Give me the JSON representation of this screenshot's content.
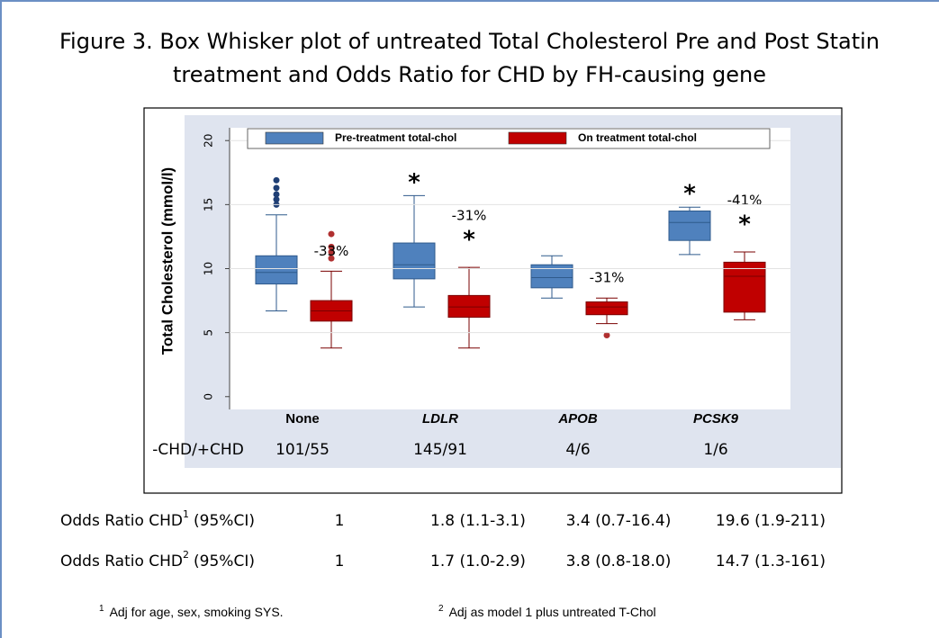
{
  "title": "Figure 3. Box Whisker plot of untreated Total Cholesterol Pre and Post Statin treatment and Odds Ratio for CHD by FH-causing gene",
  "chart_data": {
    "type": "box",
    "ylabel": "Total Cholesterol (mmol/l)",
    "categories": [
      "None",
      "LDLR",
      "APOB",
      "PCSK9"
    ],
    "ylim": [
      -1,
      21
    ],
    "yticks": [
      0,
      5,
      10,
      15,
      20
    ],
    "grid": true,
    "series": [
      {
        "name": "Pre-treatment total-chol",
        "color": "#4f81bd",
        "boxes": [
          {
            "low": 6.7,
            "q1": 8.8,
            "median": 9.7,
            "q3": 11.0,
            "high": 14.2,
            "outliers": [
              16.9,
              16.3,
              15.8,
              15.4,
              15.0
            ]
          },
          {
            "low": 7.0,
            "q1": 9.2,
            "median": 10.3,
            "q3": 12.0,
            "high": 15.7,
            "outliers": []
          },
          {
            "low": 7.7,
            "q1": 8.5,
            "median": 9.3,
            "q3": 10.3,
            "high": 11.0,
            "outliers": []
          },
          {
            "low": 11.1,
            "q1": 12.2,
            "median": 13.6,
            "q3": 14.5,
            "high": 14.8,
            "outliers": []
          }
        ],
        "markers": [
          null,
          "*",
          null,
          "*"
        ]
      },
      {
        "name": "On treatment total-chol",
        "color": "#c00000",
        "boxes": [
          {
            "low": 3.8,
            "q1": 5.9,
            "median": 6.7,
            "q3": 7.5,
            "high": 9.8,
            "outliers": [
              12.7,
              11.7,
              11.3,
              10.8
            ]
          },
          {
            "low": 3.8,
            "q1": 6.2,
            "median": 7.0,
            "q3": 7.9,
            "high": 10.1,
            "outliers": []
          },
          {
            "low": 5.7,
            "q1": 6.4,
            "median": 7.0,
            "q3": 7.4,
            "high": 7.7,
            "outliers": [
              4.8
            ]
          },
          {
            "low": 6.0,
            "q1": 6.6,
            "median": 9.4,
            "q3": 10.5,
            "high": 11.3,
            "outliers": []
          }
        ],
        "markers": [
          null,
          "*",
          null,
          "*"
        ],
        "change_labels": [
          "-33%",
          "-31%",
          "-31%",
          "-41%"
        ]
      }
    ],
    "chd_label": "-CHD/+CHD",
    "chd_counts": [
      "101/55",
      "145/91",
      "4/6",
      "1/6"
    ]
  },
  "odds_table": {
    "rows": [
      {
        "label": "Odds Ratio CHD",
        "sup": "1",
        "suffix": "(95%CI)",
        "values": [
          "1",
          "1.8 (1.1-3.1)",
          "3.4 (0.7-16.4)",
          "19.6 (1.9-211)"
        ]
      },
      {
        "label": "Odds Ratio CHD",
        "sup": "2",
        "suffix": "(95%CI)",
        "values": [
          "1",
          "1.7 (1.0-2.9)",
          "3.8 (0.8-18.0)",
          "14.7 (1.3-161)"
        ]
      }
    ]
  },
  "footnotes": [
    {
      "sup": "1",
      "text": "Adj for age, sex, smoking  SYS."
    },
    {
      "sup": "2",
      "text": "Adj as model 1 plus untreated T-Chol"
    }
  ]
}
